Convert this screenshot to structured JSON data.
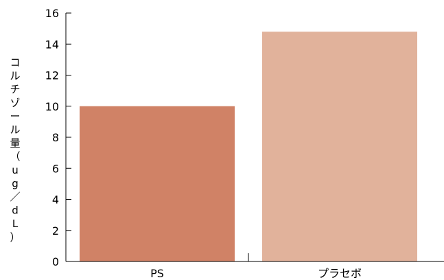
{
  "chart_data": {
    "type": "bar",
    "title": "",
    "xlabel": "",
    "ylabel": "コルチゾール量（ug／dL）",
    "ylim": [
      0,
      16
    ],
    "yticks": [
      0,
      2,
      4,
      6,
      8,
      10,
      12,
      14,
      16
    ],
    "categories": [
      "PS",
      "プラセボ"
    ],
    "values": [
      10.0,
      14.8
    ],
    "colors": [
      "#d08266",
      "#e1b29b"
    ],
    "grid": false,
    "legend": "none"
  }
}
